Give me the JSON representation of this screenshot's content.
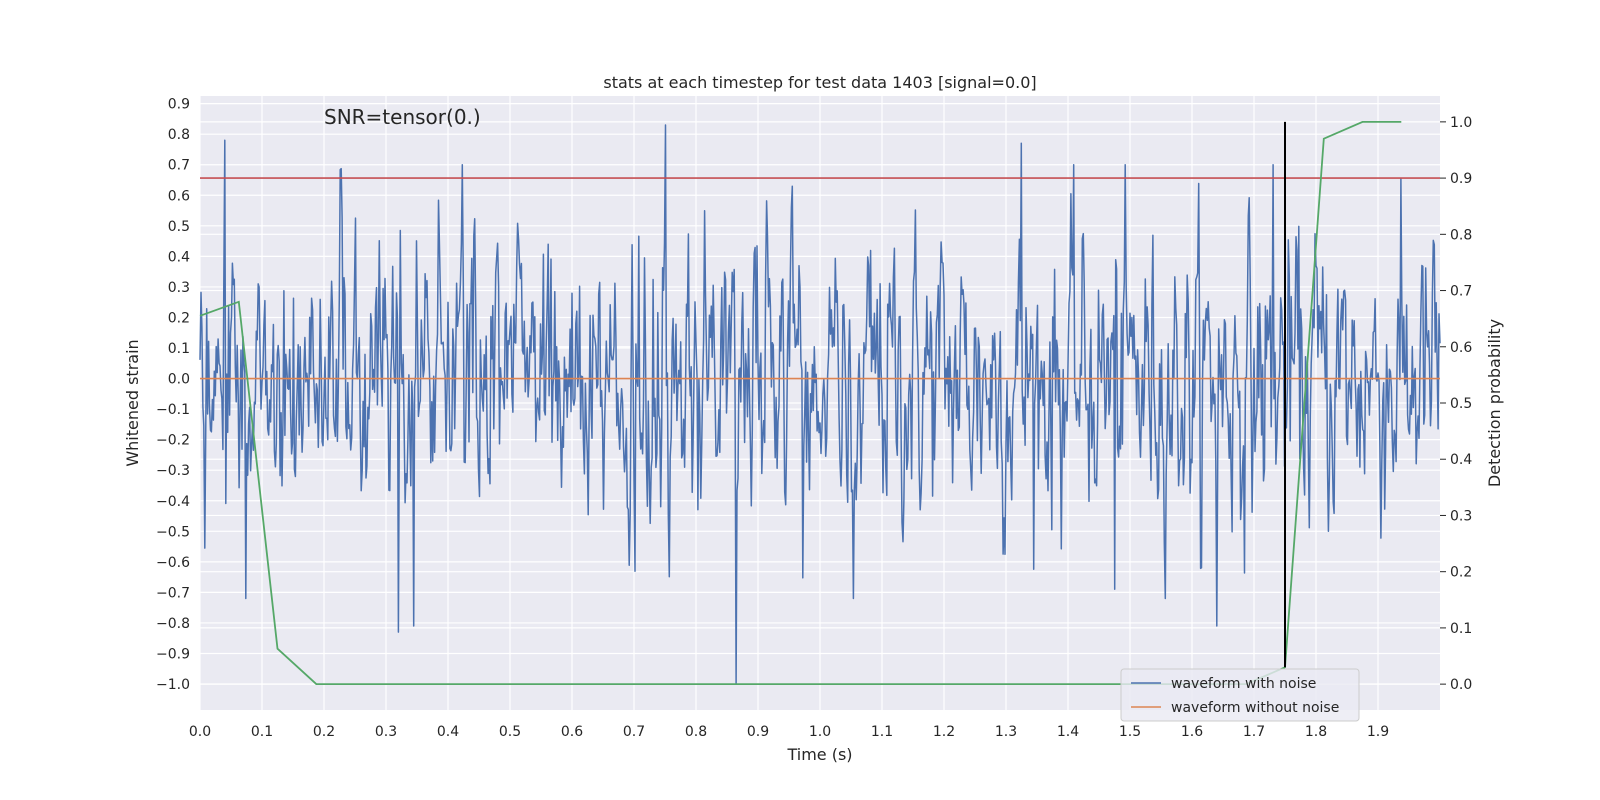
{
  "chart_data": {
    "type": "line",
    "title": "stats at each timestep for test data 1403 [signal=0.0]",
    "xlabel": "Time (s)",
    "ylabel": "Whitened strain",
    "y2label": "Detection probability",
    "annotation": "SNR=tensor(0.)",
    "xlim": [
      0.0,
      2.0
    ],
    "ylim": [
      -1.085,
      0.925
    ],
    "y2lim": [
      -0.046,
      1.046
    ],
    "xticks": [
      0.0,
      0.1,
      0.2,
      0.3,
      0.4,
      0.5,
      0.6,
      0.7,
      0.8,
      0.9,
      1.0,
      1.1,
      1.2,
      1.3,
      1.4,
      1.5,
      1.6,
      1.7,
      1.8,
      1.9
    ],
    "xtick_labels": [
      "0.0",
      "0.1",
      "0.2",
      "0.3",
      "0.4",
      "0.5",
      "0.6",
      "0.7",
      "0.8",
      "0.9",
      "1.0",
      "1.1",
      "1.2",
      "1.3",
      "1.4",
      "1.5",
      "1.6",
      "1.7",
      "1.8",
      "1.9"
    ],
    "yticks": [
      -1.0,
      -0.9,
      -0.8,
      -0.7,
      -0.6,
      -0.5,
      -0.4,
      -0.3,
      -0.2,
      -0.1,
      0.0,
      0.1,
      0.2,
      0.3,
      0.4,
      0.5,
      0.6,
      0.7,
      0.8,
      0.9
    ],
    "ytick_labels": [
      "−1.0",
      "−0.9",
      "−0.8",
      "−0.7",
      "−0.6",
      "−0.5",
      "−0.4",
      "−0.3",
      "−0.2",
      "−0.1",
      "0.0",
      "0.1",
      "0.2",
      "0.3",
      "0.4",
      "0.5",
      "0.6",
      "0.7",
      "0.8",
      "0.9"
    ],
    "y2ticks": [
      0.0,
      0.1,
      0.2,
      0.3,
      0.4,
      0.5,
      0.6,
      0.7,
      0.8,
      0.9,
      1.0
    ],
    "y2tick_labels": [
      "0.0",
      "0.1",
      "0.2",
      "0.3",
      "0.4",
      "0.5",
      "0.6",
      "0.7",
      "0.8",
      "0.9",
      "1.0"
    ],
    "grid": true,
    "legend_position": "lower-right",
    "series": [
      {
        "name": "waveform with noise",
        "color": "#4c72b0",
        "x_range": [
          0.0,
          2.0
        ],
        "approx_amplitude_range": [
          -1.0,
          0.83
        ],
        "notable_points": [
          {
            "x": 0.04,
            "y": 0.78
          },
          {
            "x": 0.75,
            "y": 0.83
          },
          {
            "x": 0.865,
            "y": -1.0
          },
          {
            "x": 1.325,
            "y": 0.77
          },
          {
            "x": 1.73,
            "y": 0.7
          },
          {
            "x": 0.32,
            "y": -0.83
          },
          {
            "x": 0.345,
            "y": -0.81
          },
          {
            "x": 1.475,
            "y": -0.69
          },
          {
            "x": 1.64,
            "y": -0.81
          }
        ]
      },
      {
        "name": "waveform without noise",
        "color": "#dd8452",
        "x": [
          0.0,
          2.0
        ],
        "y": [
          0.0,
          0.0
        ]
      }
    ],
    "probability_series": {
      "color": "#55a868",
      "x": [
        0.0,
        0.0625,
        0.125,
        0.1875,
        1.0,
        1.6875,
        1.75,
        1.8125,
        1.875,
        1.9375
      ],
      "y": [
        0.655,
        0.68,
        0.063,
        0.0,
        0.0,
        0.0,
        0.03,
        0.97,
        1.0,
        1.0
      ]
    },
    "threshold_line": {
      "color": "#c44e52",
      "y2": 0.9
    },
    "vertical_marker": {
      "color": "#000000",
      "x": 1.75,
      "y2_range": [
        0.03,
        1.0
      ]
    }
  }
}
